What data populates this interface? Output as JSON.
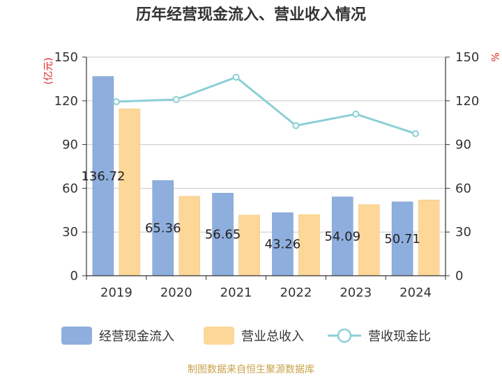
{
  "chart_data": {
    "type": "bar",
    "title": "历年经营现金流入、营业收入情况",
    "categories": [
      "2019",
      "2020",
      "2021",
      "2022",
      "2023",
      "2024"
    ],
    "y_left": {
      "unit": "(亿元)",
      "ylim": [
        0,
        150
      ],
      "ticks": [
        "0",
        "30",
        "60",
        "90",
        "120",
        "150"
      ]
    },
    "y_right": {
      "unit": "%",
      "ylim": [
        0,
        150
      ],
      "ticks": [
        "0",
        "30",
        "60",
        "90",
        "120",
        "150"
      ]
    },
    "series": [
      {
        "name": "经营现金流入",
        "kind": "bar",
        "axis": "left",
        "color": "#8eaedd",
        "values": [
          136.72,
          65.36,
          56.65,
          43.26,
          54.09,
          50.71
        ],
        "labels": [
          "136.72",
          "65.36",
          "56.65",
          "43.26",
          "54.09",
          "50.71"
        ]
      },
      {
        "name": "营业总收入",
        "kind": "bar",
        "axis": "left",
        "color": "#fdd798",
        "values": [
          114.5,
          54.5,
          41.6,
          42.0,
          48.8,
          52.0
        ]
      },
      {
        "name": "营收现金比",
        "kind": "line",
        "axis": "right",
        "color": "#8ccfd6",
        "values": [
          119.4,
          120.9,
          136.2,
          103.0,
          110.9,
          97.5
        ]
      }
    ],
    "grid": true,
    "legend_position": "bottom",
    "source": "制图数据来自恒生聚源数据库"
  }
}
